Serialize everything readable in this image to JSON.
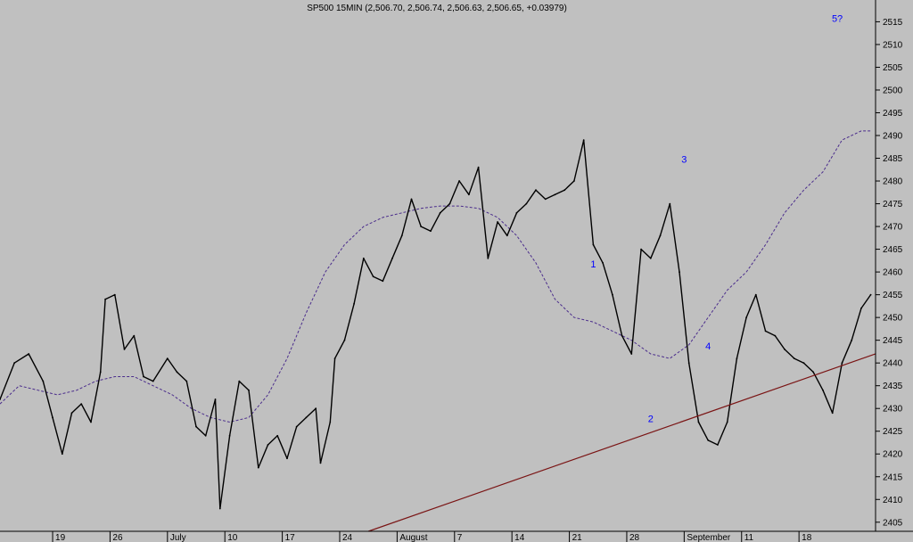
{
  "chart_data": {
    "type": "line",
    "title": "SP500 15MIN (2,506.70, 2,506.74, 2,506.63, 2,506.65, +0.03979)",
    "colors": {
      "background": "#c0c0c0",
      "price": "#000000",
      "moving_average": "#4b2d8c",
      "trendline": "#7a1515",
      "wave_labels": "#0000ff"
    },
    "ylim": [
      2403,
      2519
    ],
    "y_ticks": [
      2405,
      2410,
      2415,
      2420,
      2425,
      2430,
      2435,
      2440,
      2445,
      2450,
      2455,
      2460,
      2465,
      2470,
      2475,
      2480,
      2485,
      2490,
      2495,
      2500,
      2505,
      2510,
      2515
    ],
    "x_ticks": [
      "19",
      "26",
      "July",
      "10",
      "17",
      "24",
      "August",
      "7",
      "14",
      "21",
      "28",
      "September",
      "11",
      "18"
    ],
    "x_tick_index": [
      11,
      23,
      35,
      47,
      59,
      71,
      83,
      95,
      107,
      119,
      131,
      143,
      155,
      167
    ],
    "x_count": 183,
    "price": [
      [
        0,
        2432
      ],
      [
        3,
        2440
      ],
      [
        6,
        2442
      ],
      [
        9,
        2436
      ],
      [
        11,
        2428
      ],
      [
        13,
        2420
      ],
      [
        15,
        2429
      ],
      [
        17,
        2431
      ],
      [
        19,
        2427
      ],
      [
        21,
        2438
      ],
      [
        22,
        2454
      ],
      [
        24,
        2455
      ],
      [
        26,
        2443
      ],
      [
        28,
        2446
      ],
      [
        30,
        2437
      ],
      [
        32,
        2436
      ],
      [
        35,
        2441
      ],
      [
        37,
        2438
      ],
      [
        39,
        2436
      ],
      [
        41,
        2426
      ],
      [
        43,
        2424
      ],
      [
        45,
        2432
      ],
      [
        46,
        2408
      ],
      [
        48,
        2424
      ],
      [
        50,
        2436
      ],
      [
        52,
        2434
      ],
      [
        54,
        2417
      ],
      [
        56,
        2422
      ],
      [
        58,
        2424
      ],
      [
        60,
        2419
      ],
      [
        62,
        2426
      ],
      [
        64,
        2428
      ],
      [
        66,
        2430
      ],
      [
        67,
        2418
      ],
      [
        69,
        2427
      ],
      [
        70,
        2441
      ],
      [
        72,
        2445
      ],
      [
        74,
        2453
      ],
      [
        76,
        2463
      ],
      [
        78,
        2459
      ],
      [
        80,
        2458
      ],
      [
        82,
        2463
      ],
      [
        84,
        2468
      ],
      [
        86,
        2476
      ],
      [
        88,
        2470
      ],
      [
        90,
        2469
      ],
      [
        92,
        2473
      ],
      [
        94,
        2475
      ],
      [
        96,
        2480
      ],
      [
        98,
        2477
      ],
      [
        100,
        2483
      ],
      [
        102,
        2463
      ],
      [
        104,
        2471
      ],
      [
        106,
        2468
      ],
      [
        108,
        2473
      ],
      [
        110,
        2475
      ],
      [
        112,
        2478
      ],
      [
        114,
        2476
      ],
      [
        116,
        2477
      ],
      [
        118,
        2478
      ],
      [
        120,
        2480
      ],
      [
        122,
        2489
      ],
      [
        124,
        2466
      ],
      [
        126,
        2462
      ],
      [
        128,
        2455
      ],
      [
        130,
        2446
      ],
      [
        132,
        2442
      ],
      [
        134,
        2465
      ],
      [
        136,
        2463
      ],
      [
        138,
        2468
      ],
      [
        140,
        2475
      ],
      [
        142,
        2460
      ],
      [
        144,
        2440
      ],
      [
        146,
        2427
      ],
      [
        148,
        2423
      ],
      [
        150,
        2422
      ],
      [
        152,
        2427
      ],
      [
        154,
        2441
      ],
      [
        156,
        2450
      ],
      [
        158,
        2455
      ],
      [
        160,
        2447
      ],
      [
        162,
        2446
      ],
      [
        164,
        2443
      ],
      [
        166,
        2441
      ],
      [
        168,
        2440
      ],
      [
        170,
        2438
      ],
      [
        172,
        2434
      ],
      [
        174,
        2429
      ],
      [
        176,
        2440
      ],
      [
        178,
        2445
      ],
      [
        180,
        2452
      ],
      [
        182,
        2455
      ]
    ],
    "moving_average": [
      [
        0,
        2431
      ],
      [
        4,
        2435
      ],
      [
        8,
        2434
      ],
      [
        12,
        2433
      ],
      [
        16,
        2434
      ],
      [
        20,
        2436
      ],
      [
        24,
        2437
      ],
      [
        28,
        2437
      ],
      [
        32,
        2435
      ],
      [
        36,
        2433
      ],
      [
        40,
        2430
      ],
      [
        44,
        2428
      ],
      [
        48,
        2427
      ],
      [
        52,
        2428
      ],
      [
        56,
        2433
      ],
      [
        60,
        2441
      ],
      [
        64,
        2451
      ],
      [
        68,
        2460
      ],
      [
        72,
        2466
      ],
      [
        76,
        2470
      ],
      [
        80,
        2472
      ],
      [
        84,
        2473
      ],
      [
        88,
        2474
      ],
      [
        92,
        2474.5
      ],
      [
        96,
        2474.5
      ],
      [
        100,
        2474
      ],
      [
        104,
        2472
      ],
      [
        108,
        2468
      ],
      [
        112,
        2462
      ],
      [
        116,
        2454
      ],
      [
        120,
        2450
      ],
      [
        124,
        2449
      ],
      [
        128,
        2447
      ],
      [
        132,
        2445
      ],
      [
        136,
        2442
      ],
      [
        140,
        2441
      ],
      [
        144,
        2444
      ],
      [
        148,
        2450
      ],
      [
        152,
        2456
      ],
      [
        156,
        2460
      ],
      [
        160,
        2466
      ],
      [
        164,
        2473
      ],
      [
        168,
        2478
      ],
      [
        172,
        2482
      ],
      [
        176,
        2489
      ],
      [
        180,
        2491
      ],
      [
        182,
        2491
      ]
    ],
    "trendline": [
      [
        77,
        2403
      ],
      [
        183,
        2442
      ]
    ],
    "wave_labels": [
      {
        "text": "1",
        "x": 124,
        "y": 2461
      },
      {
        "text": "2",
        "x": 136,
        "y": 2427
      },
      {
        "text": "3",
        "x": 143,
        "y": 2484
      },
      {
        "text": "4",
        "x": 148,
        "y": 2443
      },
      {
        "text": "5?",
        "x": 175,
        "y": 2515
      }
    ]
  }
}
